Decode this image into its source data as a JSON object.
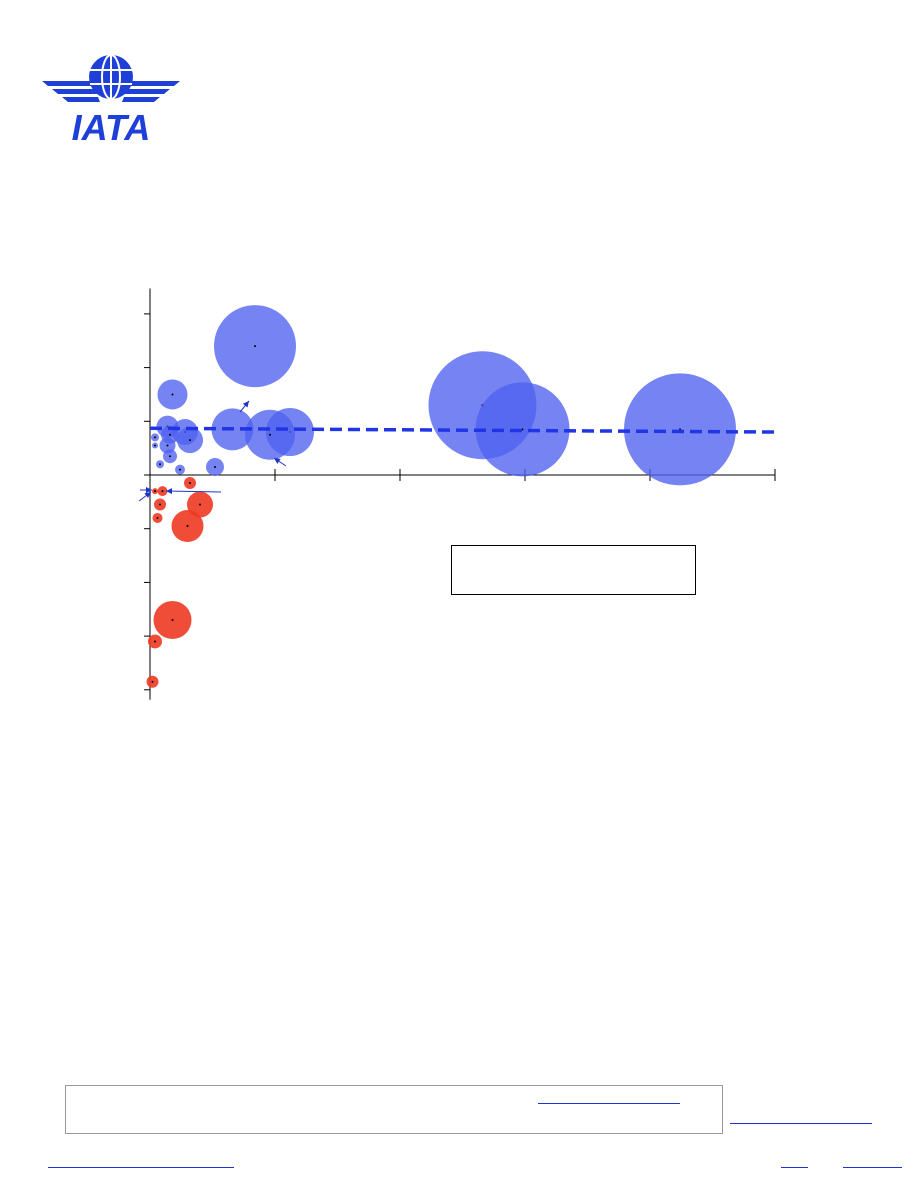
{
  "brand": {
    "name": "IATA",
    "color": "#1e40d8"
  },
  "chart_data": {
    "type": "scatter",
    "title": "",
    "xlabel": "",
    "ylabel": "",
    "xlim": [
      0,
      25
    ],
    "ylim": [
      -4,
      3.1
    ],
    "y_ticks": [
      3,
      2,
      1,
      0,
      -1,
      -2,
      -3,
      -4
    ],
    "x_ticks": [
      0,
      5,
      10,
      15,
      20,
      25
    ],
    "grid": false,
    "colors": {
      "positive": "#4f61ef",
      "negative": "#ee3a24",
      "trend": "#2035e6"
    },
    "trendline": {
      "x": [
        0,
        25
      ],
      "y": [
        0.87,
        0.8
      ]
    },
    "series": [
      {
        "points": [
          {
            "x": 4.2,
            "y": 2.4,
            "size": 41
          },
          {
            "x": 13.3,
            "y": 1.3,
            "size": 54
          },
          {
            "x": 14.9,
            "y": 0.85,
            "size": 47
          },
          {
            "x": 21.2,
            "y": 0.85,
            "size": 56
          },
          {
            "x": 5.6,
            "y": 0.8,
            "size": 24
          },
          {
            "x": 4.8,
            "y": 0.75,
            "size": 25
          },
          {
            "x": 3.3,
            "y": 0.85,
            "size": 21
          },
          {
            "x": 0.9,
            "y": 1.5,
            "size": 15
          },
          {
            "x": 1.4,
            "y": 0.8,
            "size": 13
          },
          {
            "x": 1.6,
            "y": 0.65,
            "size": 13
          },
          {
            "x": 0.7,
            "y": 0.9,
            "size": 11
          },
          {
            "x": 0.8,
            "y": 0.75,
            "size": 9
          },
          {
            "x": 0.7,
            "y": 0.55,
            "size": 8
          },
          {
            "x": 0.8,
            "y": 0.35,
            "size": 7
          },
          {
            "x": 2.6,
            "y": 0.15,
            "size": 9
          },
          {
            "x": 1.2,
            "y": 0.1,
            "size": 5
          },
          {
            "x": 0.4,
            "y": 0.2,
            "size": 4
          },
          {
            "x": 0.2,
            "y": 0.7,
            "size": 4
          },
          {
            "x": 0.2,
            "y": 0.55,
            "size": 3
          }
        ]
      },
      {
        "points": [
          {
            "x": 1.6,
            "y": -0.15,
            "size": 6
          },
          {
            "x": 0.5,
            "y": -0.3,
            "size": 5
          },
          {
            "x": 2.0,
            "y": -0.55,
            "size": 13
          },
          {
            "x": 1.5,
            "y": -0.95,
            "size": 16
          },
          {
            "x": 0.4,
            "y": -0.55,
            "size": 6
          },
          {
            "x": 0.3,
            "y": -0.8,
            "size": 5
          },
          {
            "x": 0.9,
            "y": -2.7,
            "size": 19
          },
          {
            "x": 0.2,
            "y": -3.1,
            "size": 7
          },
          {
            "x": 0.1,
            "y": -3.85,
            "size": 6
          },
          {
            "x": 0.2,
            "y": -0.3,
            "size": 3
          }
        ]
      }
    ]
  }
}
